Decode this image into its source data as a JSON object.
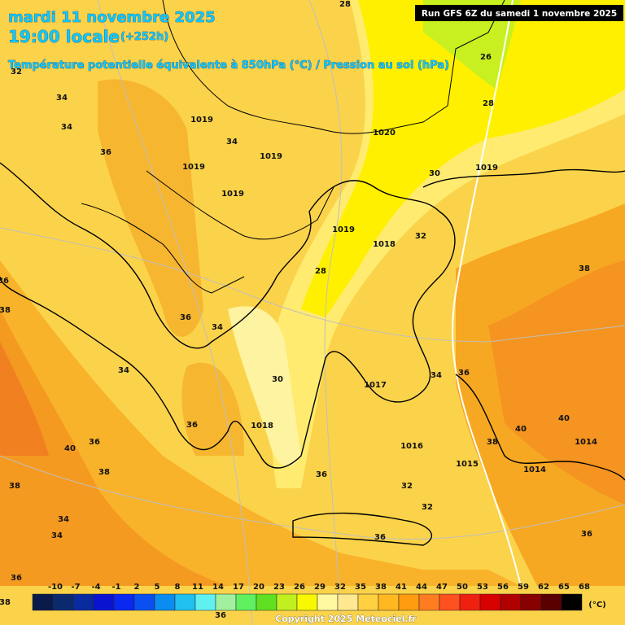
{
  "header": {
    "date": "mardi 11 novembre 2025",
    "time": "19:00 locale",
    "lead": "(+252h)",
    "subtitle": "Température potentielle équivalente à 850hPa (°C) / Pression au sol (hPa)",
    "run": "Run GFS 6Z du samedi 1 novembre 2025"
  },
  "contour_labels": [
    28,
    32,
    34,
    34,
    36,
    1019,
    1019,
    1019,
    1019,
    34,
    1020,
    26,
    28,
    30,
    1019,
    1019,
    1018,
    32,
    28,
    38,
    36,
    38,
    36,
    34,
    34,
    30,
    1017,
    34,
    36,
    36,
    1018,
    40,
    40,
    38,
    1014,
    1016,
    36,
    40,
    1015,
    1014,
    38,
    36,
    38,
    32,
    32,
    34,
    34,
    36,
    36,
    36,
    38,
    36
  ],
  "legend": {
    "values": [
      -10,
      -7,
      -4,
      -1,
      2,
      5,
      8,
      11,
      14,
      17,
      20,
      23,
      26,
      29,
      32,
      35,
      38,
      41,
      44,
      47,
      50,
      53,
      56,
      59,
      62,
      65,
      68
    ],
    "colors": [
      "#0a1a4a",
      "#0b2a6e",
      "#0a2aa0",
      "#0a14d0",
      "#0a28f0",
      "#0a50f0",
      "#0a8cf0",
      "#20c0f0",
      "#60f0f0",
      "#a0f0a0",
      "#60f060",
      "#60e020",
      "#c0f020",
      "#f8f800",
      "#fff8a0",
      "#ffe890",
      "#ffd040",
      "#ffb820",
      "#ff9c10",
      "#ff7c20",
      "#ff5020",
      "#f02010",
      "#d80000",
      "#b00000",
      "#880000",
      "#5a0000",
      "#000000"
    ],
    "unit": "(°C)"
  },
  "copyright": "Copyright 2025 Meteociel.fr"
}
